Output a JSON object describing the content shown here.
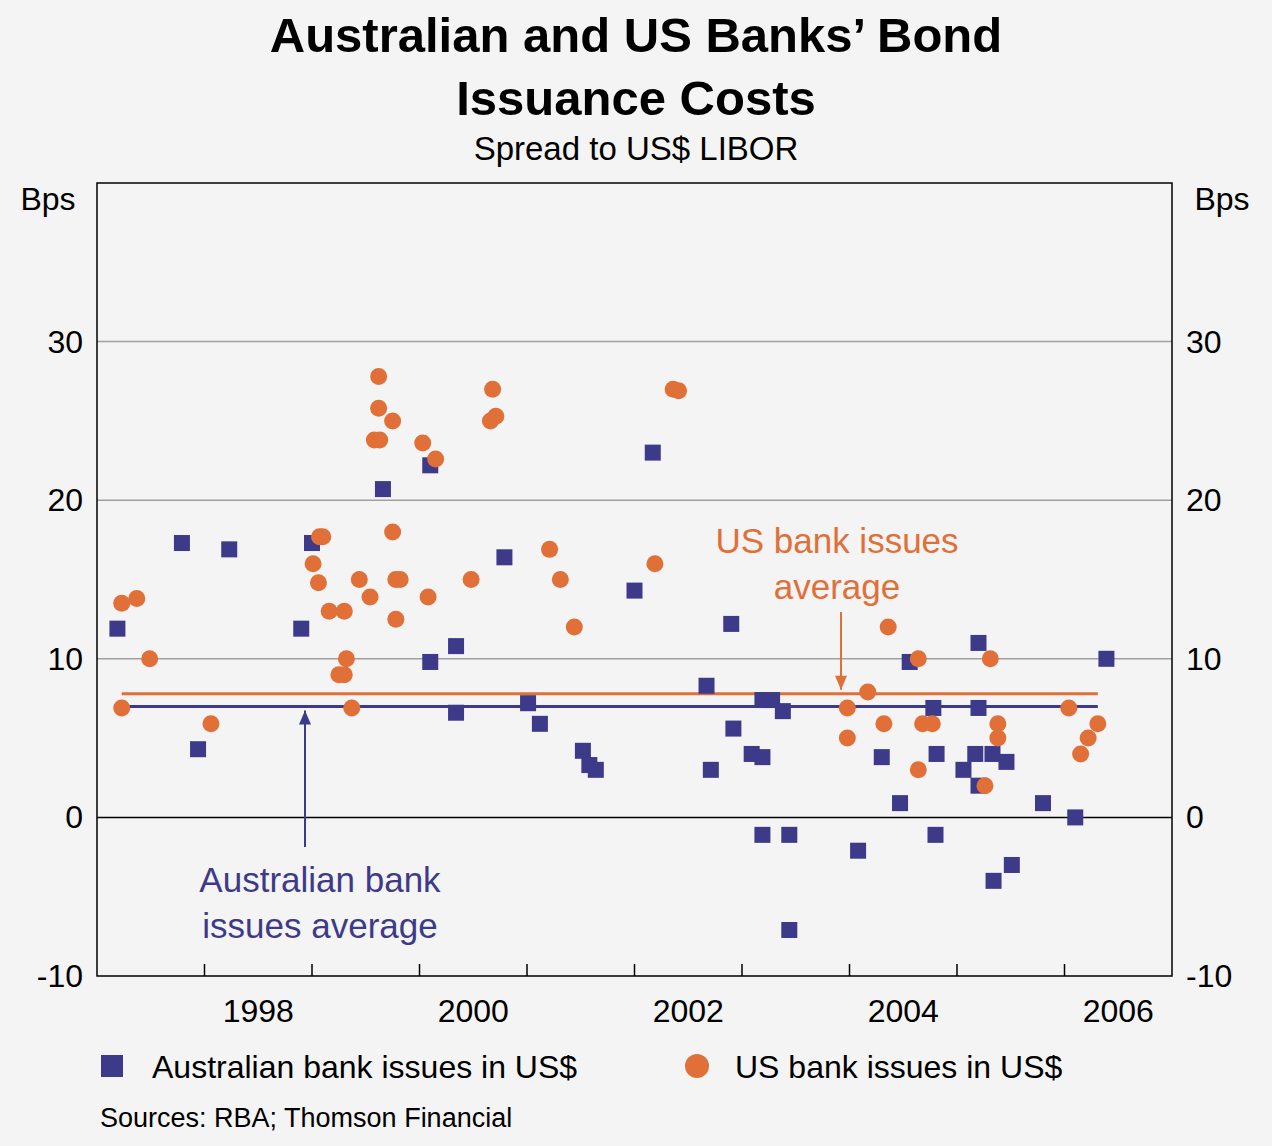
{
  "chart_data": {
    "type": "scatter",
    "title": [
      "Australian and US Banks’ Bond",
      "Issuance Costs"
    ],
    "subtitle": "Spread to US$ LIBOR",
    "ylabel": "Bps",
    "source": "Sources: RBA; Thomson Financial",
    "xlim": [
      1997,
      2007
    ],
    "xticks": [
      {
        "value": 1998.5,
        "label": "1998"
      },
      {
        "value": 2000.5,
        "label": "2000"
      },
      {
        "value": 2002.5,
        "label": "2002"
      },
      {
        "value": 2004.5,
        "label": "2004"
      },
      {
        "value": 2006.5,
        "label": "2006"
      }
    ],
    "ylim": [
      -10,
      40
    ],
    "yticks": [
      -10,
      0,
      10,
      20,
      30
    ],
    "grid": true,
    "legend": "bottom",
    "series": [
      {
        "name": "Australian bank issues in US$",
        "color": "#3d3a8a",
        "marker": "square",
        "x": [
          1997.19,
          1997.79,
          1997.94,
          1998.23,
          1998.9,
          1999.0,
          1999.66,
          2000.1,
          2000.1,
          2000.34,
          2000.34,
          2000.79,
          2001.01,
          2001.12,
          2001.52,
          2001.58,
          2001.64,
          2002.0,
          2002.17,
          2002.67,
          2002.71,
          2002.9,
          2002.92,
          2003.09,
          2003.19,
          2003.19,
          2003.19,
          2003.28,
          2003.38,
          2003.44,
          2003.44,
          2004.08,
          2004.3,
          2004.47,
          2004.56,
          2004.78,
          2004.8,
          2004.81,
          2005.06,
          2005.17,
          2005.2,
          2005.2,
          2005.2,
          2005.33,
          2005.34,
          2005.46,
          2005.51,
          2005.8,
          2006.1,
          2006.39
        ],
        "values": [
          11.9,
          17.3,
          4.3,
          16.9,
          11.9,
          17.3,
          20.7,
          22.2,
          9.8,
          10.8,
          6.6,
          16.4,
          7.2,
          5.9,
          4.2,
          3.3,
          3.0,
          14.3,
          23.0,
          8.3,
          3.0,
          12.2,
          5.6,
          4.0,
          3.8,
          -1.1,
          7.4,
          7.4,
          6.7,
          -1.1,
          -7.1,
          -2.1,
          3.8,
          0.9,
          9.8,
          6.9,
          -1.1,
          4.0,
          3.0,
          4.0,
          11.0,
          6.9,
          2.0,
          4.0,
          -4.0,
          3.5,
          -3.0,
          0.9,
          0.0,
          10.0
        ]
      },
      {
        "name": "US bank issues in US$",
        "color": "#e07038",
        "marker": "circle",
        "x": [
          1997.23,
          1997.23,
          1997.37,
          1997.49,
          1998.06,
          1999.01,
          1999.06,
          1999.07,
          1999.1,
          1999.16,
          1999.25,
          1999.3,
          1999.3,
          1999.32,
          1999.37,
          1999.44,
          1999.54,
          1999.58,
          1999.63,
          1999.62,
          1999.62,
          1999.75,
          1999.75,
          1999.78,
          1999.78,
          1999.82,
          2000.03,
          2000.08,
          2000.15,
          2000.48,
          2000.66,
          2000.68,
          2000.71,
          2001.21,
          2001.31,
          2001.44,
          2002.19,
          2002.36,
          2002.41,
          2003.98,
          2003.98,
          2004.17,
          2004.32,
          2004.36,
          2004.64,
          2004.64,
          2004.68,
          2004.77,
          2005.26,
          2005.31,
          2005.38,
          2005.38,
          2006.04,
          2006.15,
          2006.22,
          2006.31
        ],
        "values": [
          6.9,
          13.5,
          13.8,
          10.0,
          5.9,
          16.0,
          14.8,
          17.7,
          17.7,
          13.0,
          9.0,
          9.0,
          13.0,
          10.0,
          6.9,
          15.0,
          13.9,
          23.8,
          23.8,
          27.8,
          25.8,
          25.0,
          18.0,
          12.5,
          15.0,
          15.0,
          23.6,
          13.9,
          22.6,
          15.0,
          25.0,
          27.0,
          25.3,
          16.9,
          15.0,
          12.0,
          16.0,
          27.0,
          26.9,
          6.9,
          5.0,
          7.9,
          5.9,
          12.0,
          10.0,
          3.0,
          5.9,
          5.9,
          2.0,
          10.0,
          5.9,
          5.0,
          6.9,
          4.0,
          5.0,
          5.9
        ]
      }
    ],
    "averages": [
      {
        "label": [
          "US bank issues",
          "average"
        ],
        "color": "#e07038",
        "value": 7.8,
        "x": [
          1997.23,
          2006.31
        ]
      },
      {
        "label": [
          "Australian bank",
          "issues average"
        ],
        "color": "#3d3a8a",
        "value": 7.0,
        "x": [
          1997.23,
          2006.31
        ]
      }
    ]
  }
}
